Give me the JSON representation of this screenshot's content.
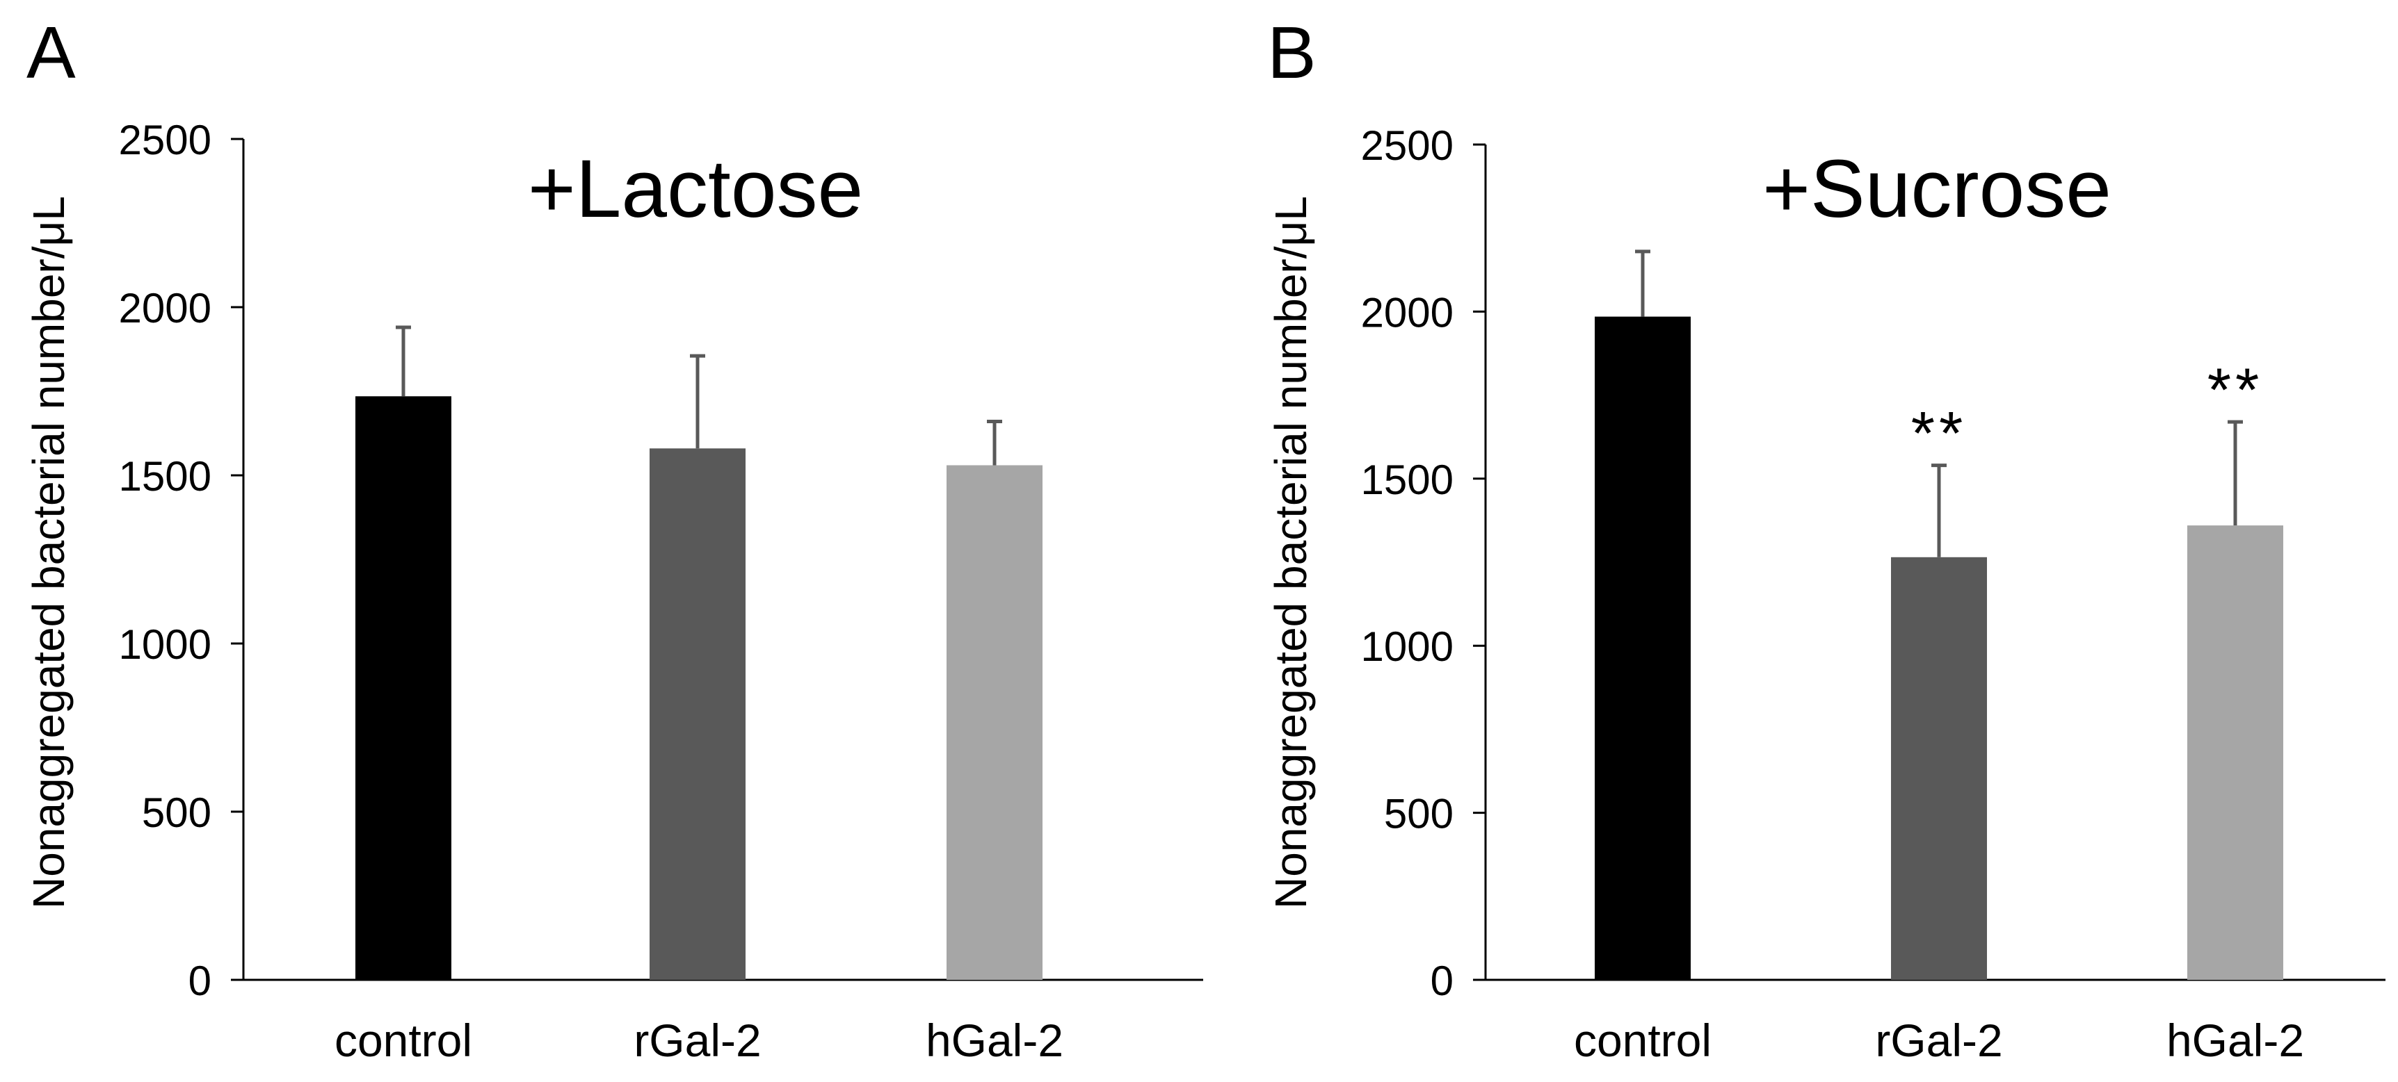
{
  "figure": {
    "panels": [
      {
        "letter": "A",
        "ylabel": "Nonaggregated bacterial number/μL"
      },
      {
        "letter": "B",
        "ylabel": "Nonaggregated bacterial number/μL"
      }
    ]
  },
  "colors": {
    "control": "#000000",
    "rGal-2": "#595959",
    "hGal-2": "#a6a6a6",
    "error_bar": "#595959",
    "axis": "#000000"
  },
  "chart_data": [
    {
      "type": "bar",
      "panel": "A",
      "title": "+Lactose",
      "xlabel": "",
      "ylabel": "Nonaggregated bacterial number/μL",
      "ylim": [
        0,
        2500
      ],
      "yticks": [
        0,
        500,
        1000,
        1500,
        2000,
        2500
      ],
      "categories": [
        "control",
        "rGal-2",
        "hGal-2"
      ],
      "values": [
        1735,
        1580,
        1530
      ],
      "errors": [
        205,
        275,
        130
      ],
      "annotations": [
        "",
        "",
        ""
      ]
    },
    {
      "type": "bar",
      "panel": "B",
      "title": "+Sucrose",
      "xlabel": "",
      "ylabel": "Nonaggregated bacterial number/μL",
      "ylim": [
        0,
        2500
      ],
      "yticks": [
        0,
        500,
        1000,
        1500,
        2000,
        2500
      ],
      "categories": [
        "control",
        "rGal-2",
        "hGal-2"
      ],
      "values": [
        1985,
        1265,
        1360
      ],
      "errors": [
        195,
        275,
        310
      ],
      "annotations": [
        "",
        "**",
        "**"
      ]
    }
  ]
}
